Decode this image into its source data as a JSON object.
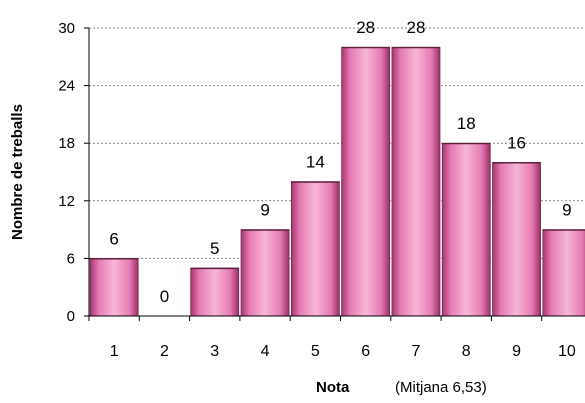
{
  "chart_data": {
    "type": "bar",
    "categories": [
      "1",
      "2",
      "3",
      "4",
      "5",
      "6",
      "7",
      "8",
      "9",
      "10"
    ],
    "values": [
      6,
      0,
      5,
      9,
      14,
      28,
      28,
      18,
      16,
      9
    ],
    "data_labels": [
      "6",
      "0",
      "5",
      "9",
      "14",
      "28",
      "28",
      "18",
      "16",
      "9"
    ],
    "ylim": [
      0,
      30
    ],
    "yticks": [
      0,
      6,
      12,
      18,
      24,
      30
    ],
    "ylabel": "Nombre de treballs",
    "xlabel": "Nota",
    "xlabel_note": "(Mitjana 6,53)",
    "grid": "horizontal dashed",
    "colors": {
      "bar_light": "#f7b6d7",
      "bar_mid": "#e67bb3",
      "bar_dark": "#a8366f",
      "bar_edge": "#6e2a4c",
      "grid": "#808080",
      "axis": "#000000"
    }
  }
}
